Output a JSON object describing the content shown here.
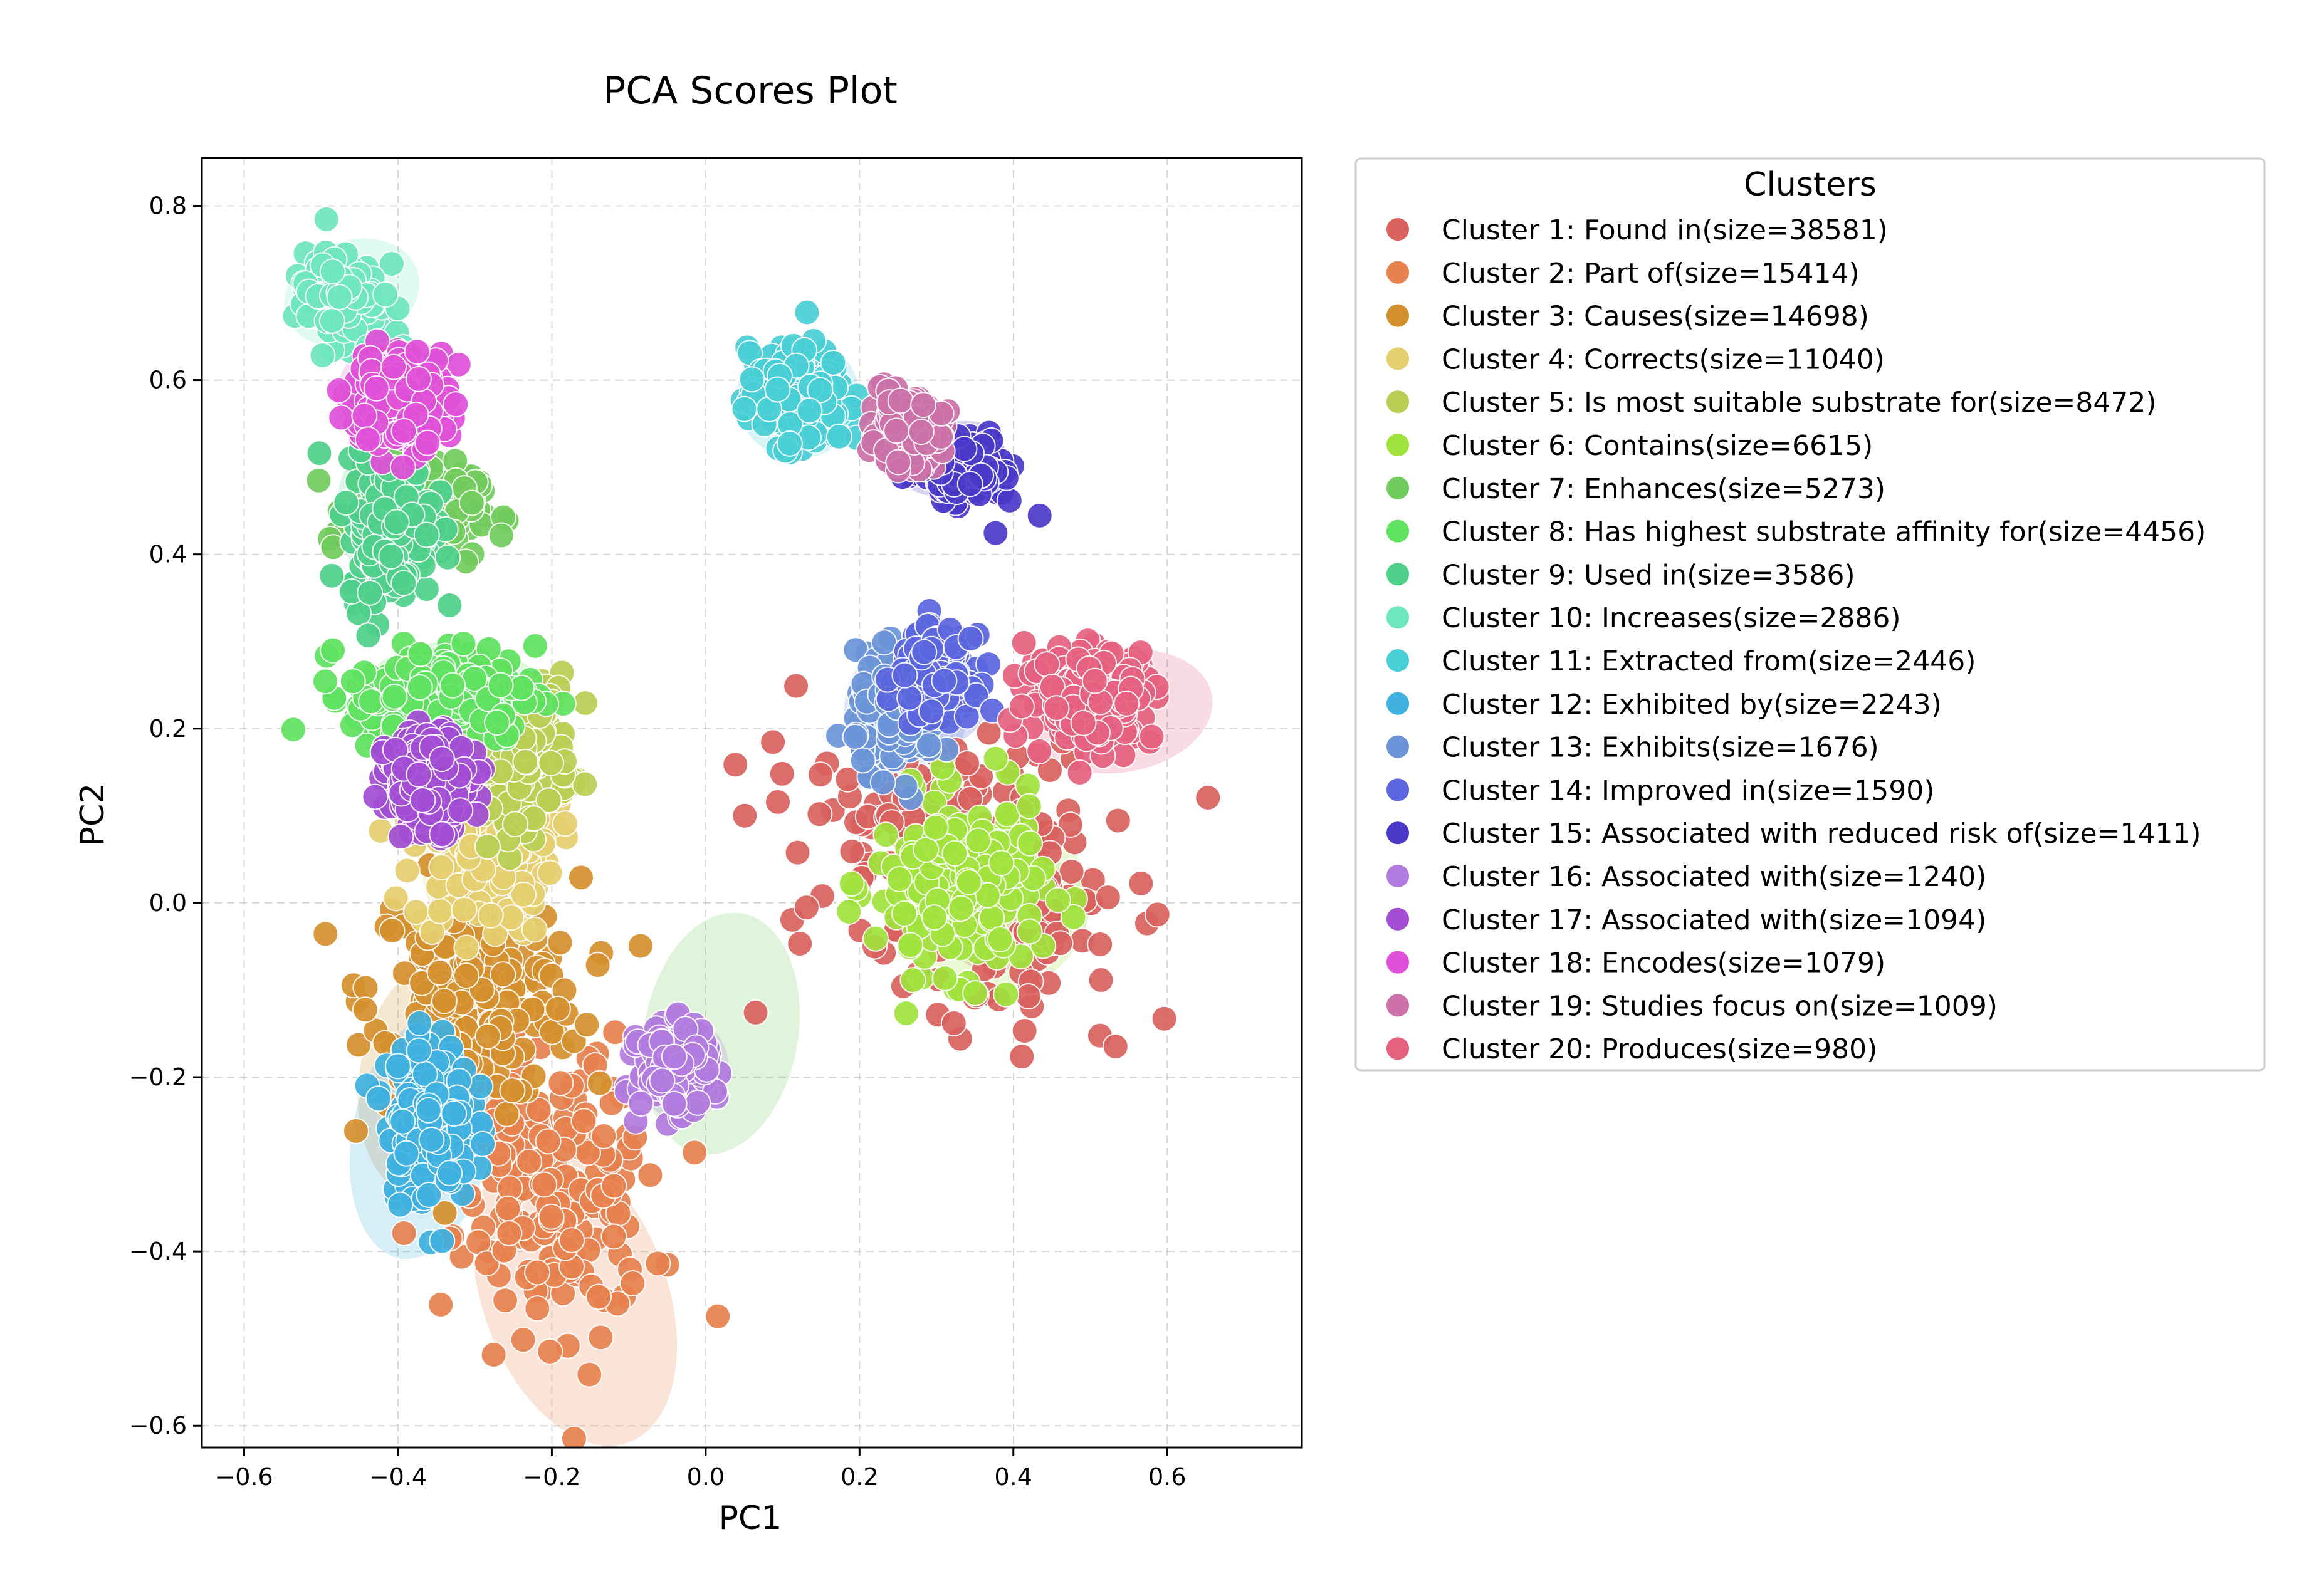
{
  "chart_data": {
    "type": "scatter",
    "title": "PCA Scores Plot",
    "xlabel": "PC1",
    "ylabel": "PC2",
    "xlim": [
      -0.655,
      0.775
    ],
    "ylim": [
      -0.625,
      0.855
    ],
    "xticks": [
      -0.6,
      -0.4,
      -0.2,
      0.0,
      0.2,
      0.4,
      0.6
    ],
    "yticks": [
      -0.6,
      -0.4,
      -0.2,
      0.0,
      0.2,
      0.4,
      0.6,
      0.8
    ],
    "xtick_labels": [
      "−0.6",
      "−0.4",
      "−0.2",
      "0.0",
      "0.2",
      "0.4",
      "0.6"
    ],
    "ytick_labels": [
      "−0.6",
      "−0.4",
      "−0.2",
      "0.0",
      "0.2",
      "0.4",
      "0.6",
      "0.8"
    ],
    "grid": true,
    "legend": {
      "title": "Clusters",
      "placement": "outside-right-top"
    },
    "series": [
      {
        "name": "Cluster 1: Found in(size=38581)",
        "color": "#d9625f",
        "center": [
          0.33,
          0.05
        ],
        "spread": [
          0.18,
          0.27
        ],
        "tilt": 60,
        "ellipse": {
          "center": [
            0.39,
            -0.02
          ],
          "semi_axes": [
            0.08,
            0.055
          ],
          "angle": -25
        }
      },
      {
        "name": "Cluster 2: Part of(size=15414)",
        "color": "#e7824f",
        "center": [
          -0.2,
          -0.33
        ],
        "spread": [
          0.15,
          0.18
        ],
        "tilt": 20,
        "ellipse": {
          "center": [
            -0.17,
            -0.45
          ],
          "semi_axes": [
            0.12,
            0.18
          ],
          "angle": -20
        }
      },
      {
        "name": "Cluster 3: Causes(size=14698)",
        "color": "#d5902e",
        "center": [
          -0.3,
          -0.1
        ],
        "spread": [
          0.15,
          0.14
        ],
        "tilt": 0,
        "ellipse": {
          "center": [
            -0.35,
            -0.2
          ],
          "semi_axes": [
            0.1,
            0.14
          ],
          "angle": 10
        }
      },
      {
        "name": "Cluster 4: Corrects(size=11040)",
        "color": "#e6cf6e",
        "center": [
          -0.29,
          0.07
        ],
        "spread": [
          0.1,
          0.12
        ],
        "tilt": 0,
        "ellipse": {
          "center": [
            -0.29,
            0.05
          ],
          "semi_axes": [
            0.08,
            0.1
          ],
          "angle": 0
        }
      },
      {
        "name": "Cluster 5: Is most suitable substrate for(size=8472)",
        "color": "#b9cf54",
        "center": [
          -0.24,
          0.18
        ],
        "spread": [
          0.07,
          0.09
        ],
        "tilt": 0,
        "ellipse": {
          "center": [
            0.42,
            -0.01
          ],
          "semi_axes": [
            0.08,
            0.06
          ],
          "angle": -20
        }
      },
      {
        "name": "Cluster 6: Contains(size=6615)",
        "color": "#a1e33d",
        "center": [
          0.33,
          0.02
        ],
        "spread": [
          0.12,
          0.11
        ],
        "tilt": 0,
        "ellipse": {
          "center": [
            0.38,
            0.0
          ],
          "semi_axes": [
            0.12,
            0.1
          ],
          "angle": -10
        }
      },
      {
        "name": "Cluster 7: Enhances(size=5273)",
        "color": "#72cb5d",
        "center": [
          -0.38,
          0.45
        ],
        "spread": [
          0.09,
          0.06
        ],
        "tilt": 0,
        "ellipse": {
          "center": [
            0.02,
            -0.15
          ],
          "semi_axes": [
            0.1,
            0.14
          ],
          "angle": 10
        }
      },
      {
        "name": "Cluster 8: Has highest substrate affinity for(size=4456)",
        "color": "#5fe25f",
        "center": [
          -0.34,
          0.24
        ],
        "spread": [
          0.13,
          0.06
        ],
        "tilt": 0,
        "ellipse": {
          "center": [
            -0.33,
            0.22
          ],
          "semi_axes": [
            0.13,
            0.08
          ],
          "angle": 0
        }
      },
      {
        "name": "Cluster 9: Used in(size=3586)",
        "color": "#4ed08a",
        "center": [
          -0.41,
          0.43
        ],
        "spread": [
          0.06,
          0.09
        ],
        "tilt": 0,
        "ellipse": {
          "center": [
            -0.42,
            0.45
          ],
          "semi_axes": [
            0.06,
            0.08
          ],
          "angle": 0
        }
      },
      {
        "name": "Cluster 10: Increases(size=2886)",
        "color": "#6ee6bf",
        "center": [
          -0.47,
          0.69
        ],
        "spread": [
          0.06,
          0.05
        ],
        "tilt": -20,
        "ellipse": {
          "center": [
            -0.46,
            0.7
          ],
          "semi_axes": [
            0.09,
            0.06
          ],
          "angle": -20
        }
      },
      {
        "name": "Cluster 11: Extracted from(size=2446)",
        "color": "#48cfd5",
        "center": [
          0.12,
          0.58
        ],
        "spread": [
          0.07,
          0.06
        ],
        "tilt": 0,
        "ellipse": {
          "center": [
            0.12,
            0.58
          ],
          "semi_axes": [
            0.08,
            0.07
          ],
          "angle": 0
        }
      },
      {
        "name": "Cluster 12: Exhibited by(size=2243)",
        "color": "#3fb1e0",
        "center": [
          -0.36,
          -0.25
        ],
        "spread": [
          0.06,
          0.1
        ],
        "tilt": 0,
        "ellipse": {
          "center": [
            -0.37,
            -0.27
          ],
          "semi_axes": [
            0.09,
            0.14
          ],
          "angle": 10
        }
      },
      {
        "name": "Cluster 13: Exhibits(size=1676)",
        "color": "#6b94d9",
        "center": [
          0.25,
          0.22
        ],
        "spread": [
          0.06,
          0.07
        ],
        "tilt": 0,
        "ellipse": {
          "center": [
            0.26,
            0.22
          ],
          "semi_axes": [
            0.08,
            0.08
          ],
          "angle": 0
        }
      },
      {
        "name": "Cluster 14: Improved in(size=1590)",
        "color": "#5b66df",
        "center": [
          0.3,
          0.26
        ],
        "spread": [
          0.05,
          0.05
        ],
        "tilt": 0,
        "ellipse": {
          "center": [
            0.3,
            0.24
          ],
          "semi_axes": [
            0.07,
            0.06
          ],
          "angle": 0
        }
      },
      {
        "name": "Cluster 15: Associated with reduced risk of(size=1411)",
        "color": "#4b38c9",
        "center": [
          0.33,
          0.5
        ],
        "spread": [
          0.06,
          0.04
        ],
        "tilt": -20,
        "ellipse": {
          "center": [
            0.32,
            0.51
          ],
          "semi_axes": [
            0.07,
            0.04
          ],
          "angle": -20
        }
      },
      {
        "name": "Cluster 16: Associated with(size=1240)",
        "color": "#b27bdf",
        "center": [
          -0.04,
          -0.19
        ],
        "spread": [
          0.05,
          0.05
        ],
        "tilt": 0,
        "ellipse": {
          "center": [
            -0.03,
            -0.19
          ],
          "semi_axes": [
            0.06,
            0.06
          ],
          "angle": 0
        }
      },
      {
        "name": "Cluster 17: Associated with(size=1094)",
        "color": "#a24dd4",
        "center": [
          -0.36,
          0.14
        ],
        "spread": [
          0.06,
          0.06
        ],
        "tilt": 0,
        "ellipse": {
          "center": [
            -0.35,
            0.14
          ],
          "semi_axes": [
            0.07,
            0.06
          ],
          "angle": 0
        }
      },
      {
        "name": "Cluster 18: Encodes(size=1079)",
        "color": "#e050d8",
        "center": [
          -0.4,
          0.58
        ],
        "spread": [
          0.07,
          0.06
        ],
        "tilt": 0,
        "ellipse": {
          "center": [
            -0.4,
            0.58
          ],
          "semi_axes": [
            0.08,
            0.07
          ],
          "angle": 0
        }
      },
      {
        "name": "Cluster 19: Studies focus on(size=1009)",
        "color": "#cc70a8",
        "center": [
          0.26,
          0.54
        ],
        "spread": [
          0.05,
          0.04
        ],
        "tilt": 0,
        "ellipse": {
          "center": [
            0.27,
            0.53
          ],
          "semi_axes": [
            0.06,
            0.04
          ],
          "angle": 0
        }
      },
      {
        "name": "Cluster 20: Produces(size=980)",
        "color": "#e5617f",
        "center": [
          0.5,
          0.24
        ],
        "spread": [
          0.09,
          0.06
        ],
        "tilt": 0,
        "ellipse": {
          "center": [
            0.54,
            0.22
          ],
          "semi_axes": [
            0.12,
            0.07
          ],
          "angle": -10
        }
      }
    ]
  }
}
